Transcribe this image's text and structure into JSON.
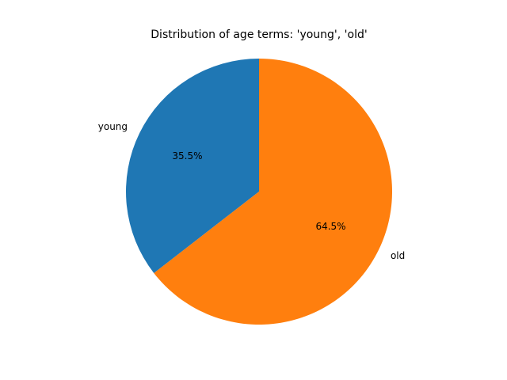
{
  "chart_data": {
    "type": "pie",
    "title": "Distribution of age terms: 'young', 'old'",
    "categories": [
      "young",
      "old"
    ],
    "values": [
      35.5,
      64.5
    ],
    "value_labels": [
      "35.5%",
      "64.5%"
    ],
    "colors": [
      "#1f77b4",
      "#ff7f0e"
    ]
  }
}
